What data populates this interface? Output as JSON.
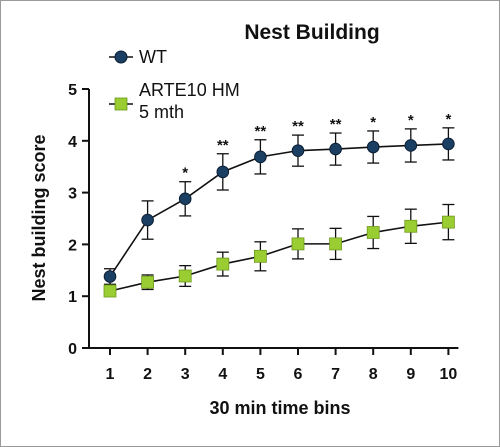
{
  "chart_data": {
    "type": "line",
    "title": "Nest Building",
    "xlabel": "30 min time bins",
    "ylabel": "Nest building score",
    "x": [
      1,
      2,
      3,
      4,
      5,
      6,
      7,
      8,
      9,
      10
    ],
    "x_tick_labels": [
      "1",
      "2",
      "3",
      "4",
      "5",
      "6",
      "7",
      "8",
      "9",
      "10"
    ],
    "y_tick_labels": [
      "0",
      "1",
      "2",
      "3",
      "4",
      "5"
    ],
    "ylim": [
      0,
      5
    ],
    "grid": false,
    "legend_position": "top-left",
    "series": [
      {
        "name": "WT",
        "color": "#1b3f63",
        "marker": "circle",
        "values": [
          1.38,
          2.47,
          2.88,
          3.4,
          3.69,
          3.81,
          3.84,
          3.88,
          3.91,
          3.94
        ],
        "error": [
          0.15,
          0.37,
          0.33,
          0.35,
          0.33,
          0.3,
          0.31,
          0.31,
          0.32,
          0.31
        ]
      },
      {
        "name": "ARTE10 HM\n5 mth",
        "color": "#9acd32",
        "marker": "square",
        "values": [
          1.1,
          1.27,
          1.39,
          1.62,
          1.77,
          2.01,
          2.01,
          2.23,
          2.35,
          2.43
        ],
        "error": [
          0.1,
          0.14,
          0.2,
          0.23,
          0.28,
          0.29,
          0.3,
          0.31,
          0.33,
          0.34
        ]
      }
    ],
    "significance": [
      {
        "x": 3,
        "label": "*"
      },
      {
        "x": 4,
        "label": "**"
      },
      {
        "x": 5,
        "label": "**"
      },
      {
        "x": 6,
        "label": "**"
      },
      {
        "x": 7,
        "label": "**"
      },
      {
        "x": 8,
        "label": "*"
      },
      {
        "x": 9,
        "label": "*"
      },
      {
        "x": 10,
        "label": "*"
      }
    ]
  }
}
